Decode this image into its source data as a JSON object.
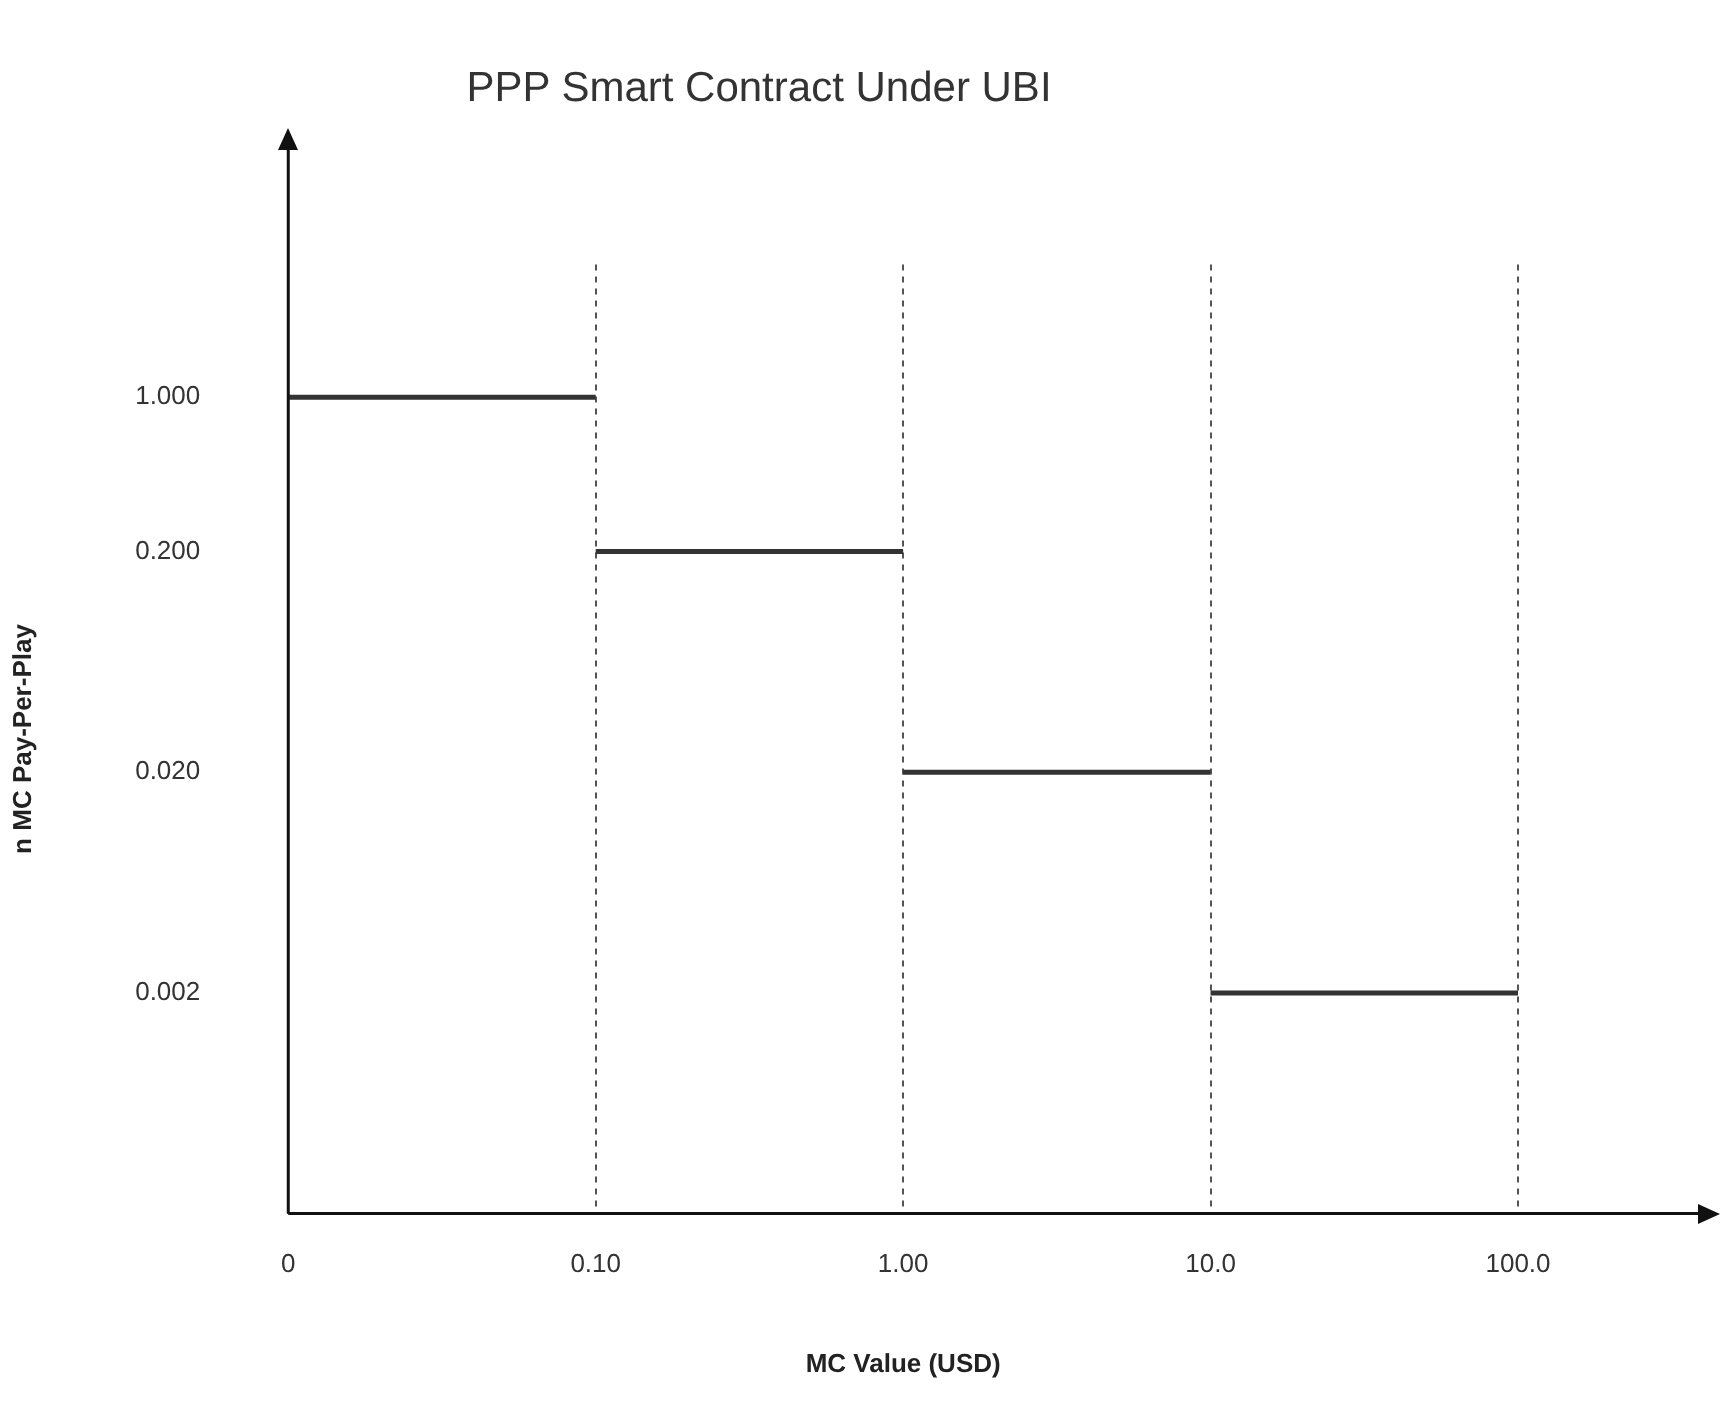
{
  "chart_data": {
    "type": "line",
    "title": "PPP Smart Contract Under UBI",
    "xlabel": "MC Value (USD)",
    "ylabel": "n MC Pay-Per-Play",
    "categories": [
      "0",
      "0.10",
      "1.00",
      "10.0",
      "100.0"
    ],
    "series": [
      {
        "color": "#333333",
        "values": [
          1.0,
          1.0,
          null,
          null,
          null
        ]
      },
      {
        "color": "#333333",
        "values": [
          null,
          0.2,
          0.2,
          null,
          null
        ]
      },
      {
        "color": "#333333",
        "values": [
          null,
          null,
          0.02,
          0.02,
          null
        ]
      },
      {
        "color": "#333333",
        "values": [
          null,
          null,
          null,
          0.002,
          0.002
        ]
      }
    ],
    "log": "y",
    "ylim": [
      0.0002,
      4
    ],
    "yticks": [
      {
        "value": 0.002,
        "label": "0.002"
      },
      {
        "value": 0.02,
        "label": "0.020"
      },
      {
        "value": 0.2,
        "label": "0.200"
      },
      {
        "value": 1,
        "label": "1.000"
      }
    ],
    "grid": "x",
    "legend": false,
    "marker": "none"
  }
}
